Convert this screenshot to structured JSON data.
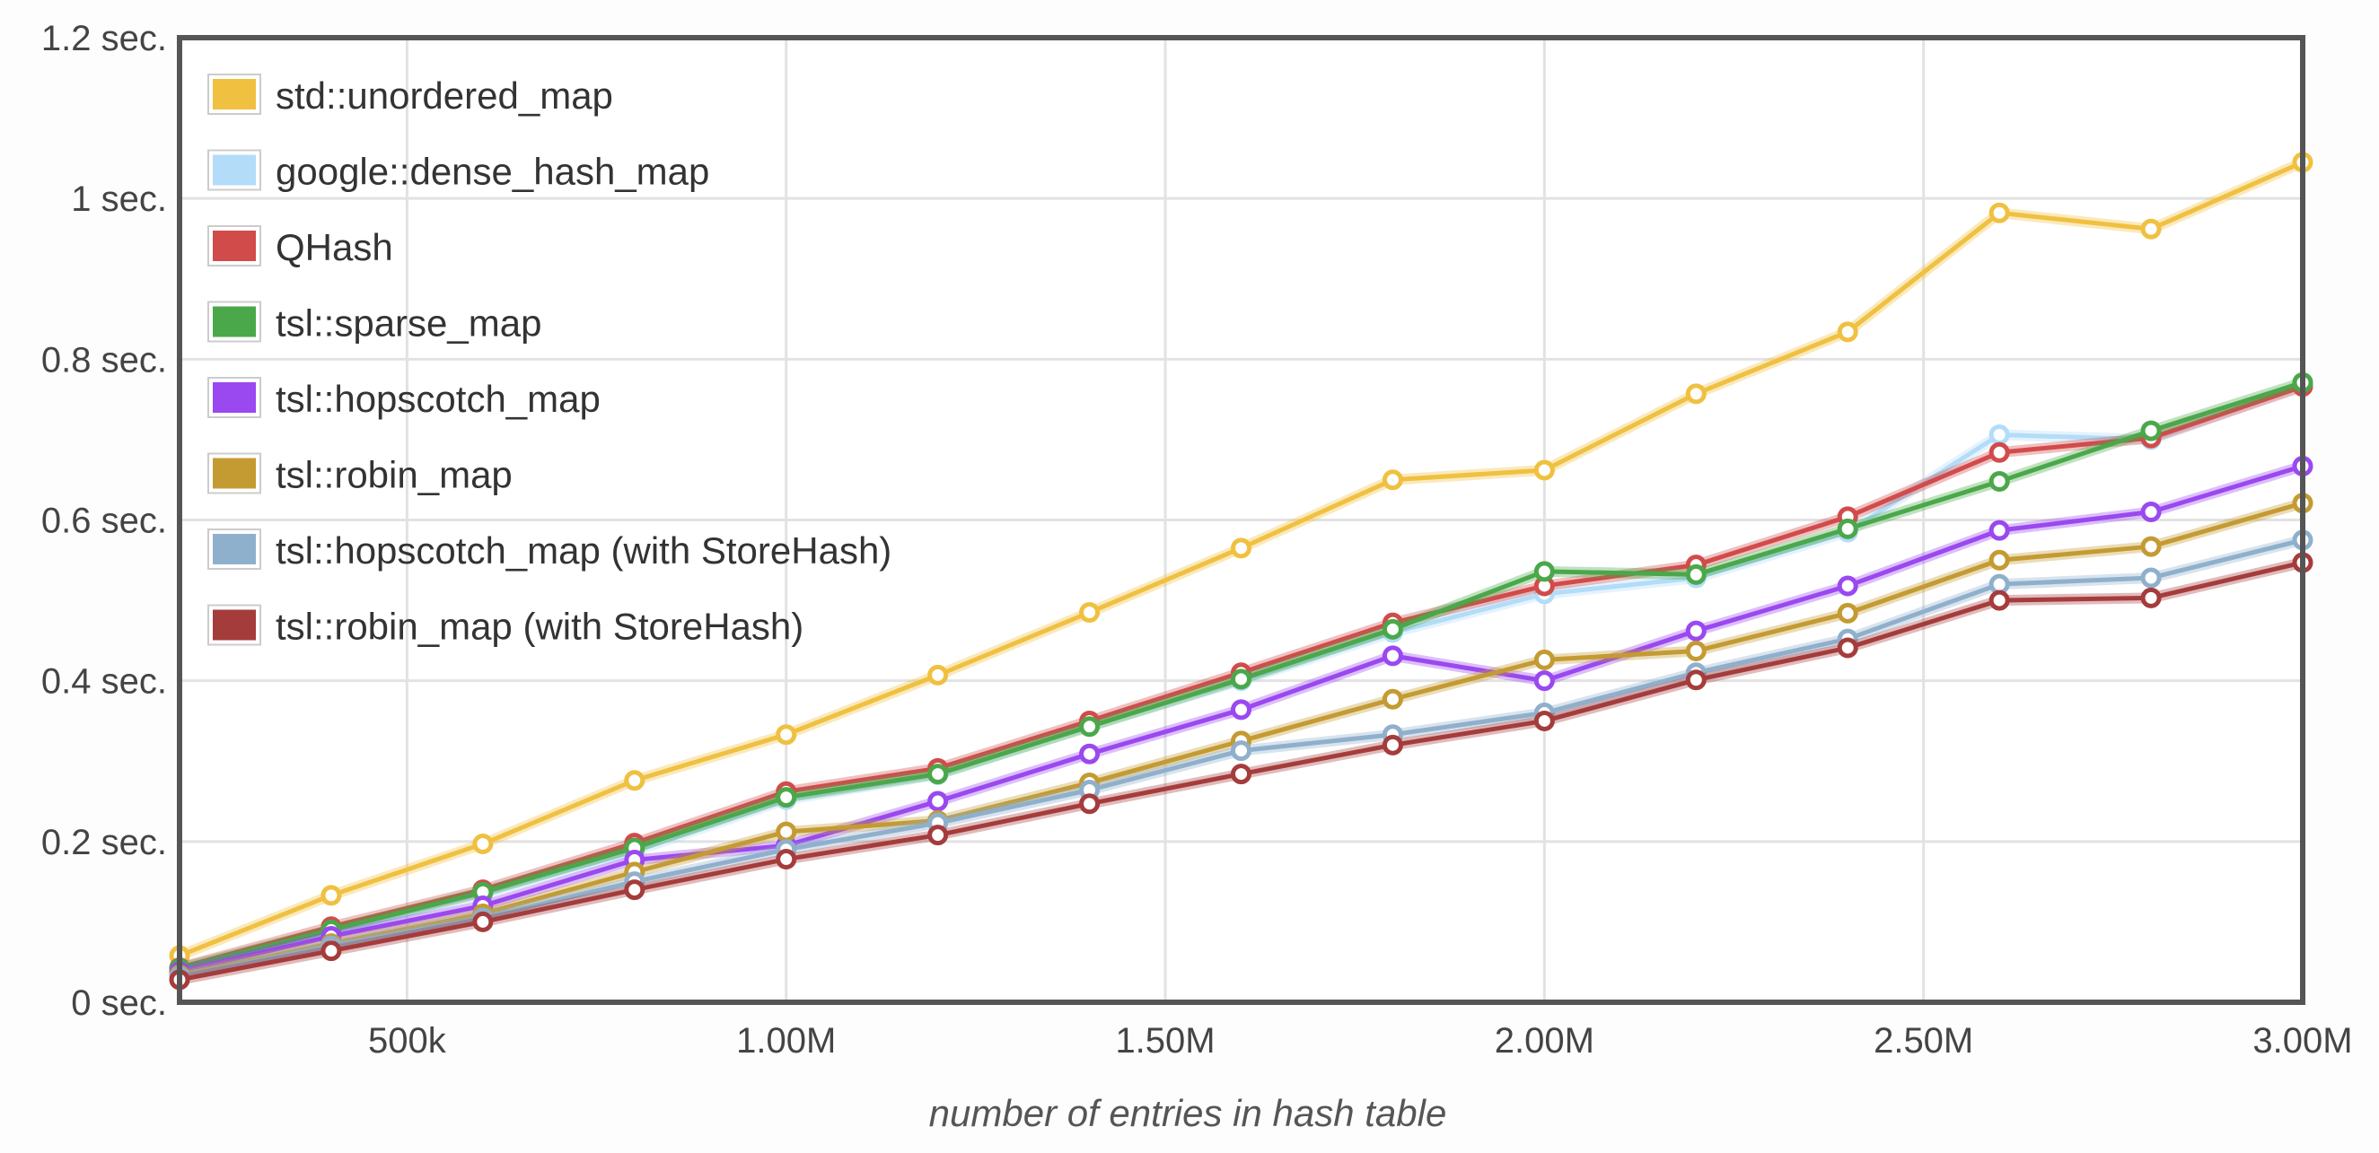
{
  "chart_data": {
    "type": "line",
    "title": "",
    "xlabel": "number of entries in hash table",
    "ylabel": "",
    "xlim": [
      200000,
      3000000
    ],
    "ylim": [
      0,
      1.2
    ],
    "grid": true,
    "legend_position": "top-left",
    "x": [
      200000,
      400000,
      600000,
      800000,
      1000000,
      1200000,
      1400000,
      1600000,
      1800000,
      2000000,
      2200000,
      2400000,
      2600000,
      2800000,
      3000000
    ],
    "x_ticks": [
      {
        "value": 500000,
        "label": "500k"
      },
      {
        "value": 1000000,
        "label": "1.00M"
      },
      {
        "value": 1500000,
        "label": "1.50M"
      },
      {
        "value": 2000000,
        "label": "2.00M"
      },
      {
        "value": 2500000,
        "label": "2.50M"
      },
      {
        "value": 3000000,
        "label": "3.00M"
      }
    ],
    "y_ticks": [
      {
        "value": 0,
        "label": "0 sec."
      },
      {
        "value": 0.2,
        "label": "0.2 sec."
      },
      {
        "value": 0.4,
        "label": "0.4 sec."
      },
      {
        "value": 0.6,
        "label": "0.6 sec."
      },
      {
        "value": 0.8,
        "label": "0.8 sec."
      },
      {
        "value": 1.0,
        "label": "1 sec."
      },
      {
        "value": 1.2,
        "label": "1.2 sec."
      }
    ],
    "series": [
      {
        "name": "std::unordered_map",
        "color": "#f0c040",
        "values": [
          0.058,
          0.133,
          0.197,
          0.276,
          0.333,
          0.407,
          0.485,
          0.565,
          0.65,
          0.662,
          0.757,
          0.834,
          0.982,
          0.962,
          1.045
        ]
      },
      {
        "name": "google::dense_hash_map",
        "color": "#b3dcf8",
        "values": [
          0.04,
          0.088,
          0.135,
          0.188,
          0.252,
          0.283,
          0.344,
          0.4,
          0.46,
          0.508,
          0.528,
          0.585,
          0.706,
          0.7,
          0.768
        ]
      },
      {
        "name": "QHash",
        "color": "#d24b4b",
        "values": [
          0.043,
          0.094,
          0.14,
          0.198,
          0.262,
          0.291,
          0.35,
          0.41,
          0.472,
          0.518,
          0.544,
          0.604,
          0.684,
          0.702,
          0.766
        ]
      },
      {
        "name": "tsl::sparse_map",
        "color": "#4aa84a",
        "values": [
          0.042,
          0.09,
          0.137,
          0.192,
          0.255,
          0.284,
          0.343,
          0.402,
          0.464,
          0.536,
          0.532,
          0.589,
          0.648,
          0.711,
          0.771
        ]
      },
      {
        "name": "tsl::hopscotch_map",
        "color": "#9a48f0",
        "values": [
          0.038,
          0.082,
          0.12,
          0.177,
          0.195,
          0.25,
          0.309,
          0.364,
          0.431,
          0.4,
          0.462,
          0.518,
          0.587,
          0.61,
          0.667
        ]
      },
      {
        "name": "tsl::robin_map",
        "color": "#c49b32",
        "values": [
          0.034,
          0.073,
          0.11,
          0.162,
          0.212,
          0.226,
          0.273,
          0.325,
          0.377,
          0.426,
          0.437,
          0.484,
          0.55,
          0.567,
          0.621
        ]
      },
      {
        "name": "tsl::hopscotch_map (with StoreHash)",
        "color": "#8fb0cc",
        "values": [
          0.032,
          0.07,
          0.105,
          0.15,
          0.19,
          0.223,
          0.264,
          0.313,
          0.333,
          0.36,
          0.41,
          0.452,
          0.52,
          0.528,
          0.575
        ]
      },
      {
        "name": "tsl::robin_map (with StoreHash)",
        "color": "#a53c3c",
        "values": [
          0.028,
          0.064,
          0.1,
          0.14,
          0.178,
          0.208,
          0.247,
          0.284,
          0.32,
          0.35,
          0.401,
          0.441,
          0.5,
          0.503,
          0.547
        ]
      }
    ]
  }
}
